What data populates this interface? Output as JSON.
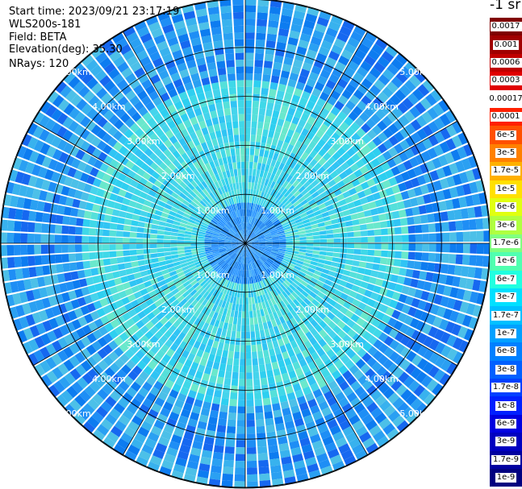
{
  "header": {
    "start_time": "Start time: 2023/09/21 23:17:19",
    "instrument": "WLS200s-181",
    "field": "Field: BETA",
    "elevation": "Elevation(deg): 35.30",
    "nrays": "NRays: 120"
  },
  "legend": {
    "title": "-1 sr",
    "labels": [
      "0.0017",
      "0.001",
      "0.0006",
      "0.0003",
      "0.00017",
      "0.0001",
      "6e-5",
      "3e-5",
      "1.7e-5",
      "1e-5",
      "6e-6",
      "3e-6",
      "1.7e-6",
      "1e-6",
      "6e-7",
      "3e-7",
      "1.7e-7",
      "1e-7",
      "6e-8",
      "3e-8",
      "1.7e-8",
      "1e-8",
      "6e-9",
      "3e-9",
      "1.7e-9",
      "1e-9"
    ],
    "colors": [
      "#800000",
      "#a00000",
      "#c00000",
      "#e00000",
      "#ffffff",
      "#ff2000",
      "#ff5000",
      "#ff8000",
      "#ffb000",
      "#ffe000",
      "#e0ff10",
      "#b0ff40",
      "#80ff80",
      "#50ffb0",
      "#20ffe0",
      "#00e0ff",
      "#00c0ff",
      "#00a0ff",
      "#0080ff",
      "#0060ff",
      "#0040ff",
      "#0020ff",
      "#0000e0",
      "#0000c0",
      "#0000a0",
      "#000080"
    ]
  },
  "chart_data": {
    "type": "heatmap",
    "subtype": "polar-ppi",
    "field": "BETA",
    "range_rings_km": [
      1,
      2,
      3,
      4,
      5
    ],
    "max_range_km": 5,
    "azimuth_spokes_deg": [
      0,
      30,
      60,
      90,
      120,
      150,
      180,
      210,
      240,
      270,
      300,
      330
    ],
    "ring_labels": [
      "1.00km",
      "2.00km",
      "3.00km",
      "4.00km",
      "5.00km"
    ],
    "nrays": 120,
    "color_scale": "log",
    "value_range": [
      1e-09,
      0.0017
    ],
    "dominant_values": {
      "near_field_0_to_1km": "1.7e-8 to 3e-8",
      "mid_field_1_to_3km": "1.7e-7 to 3e-7",
      "far_field_3_to_5km": "3e-8 to 1e-7"
    }
  }
}
